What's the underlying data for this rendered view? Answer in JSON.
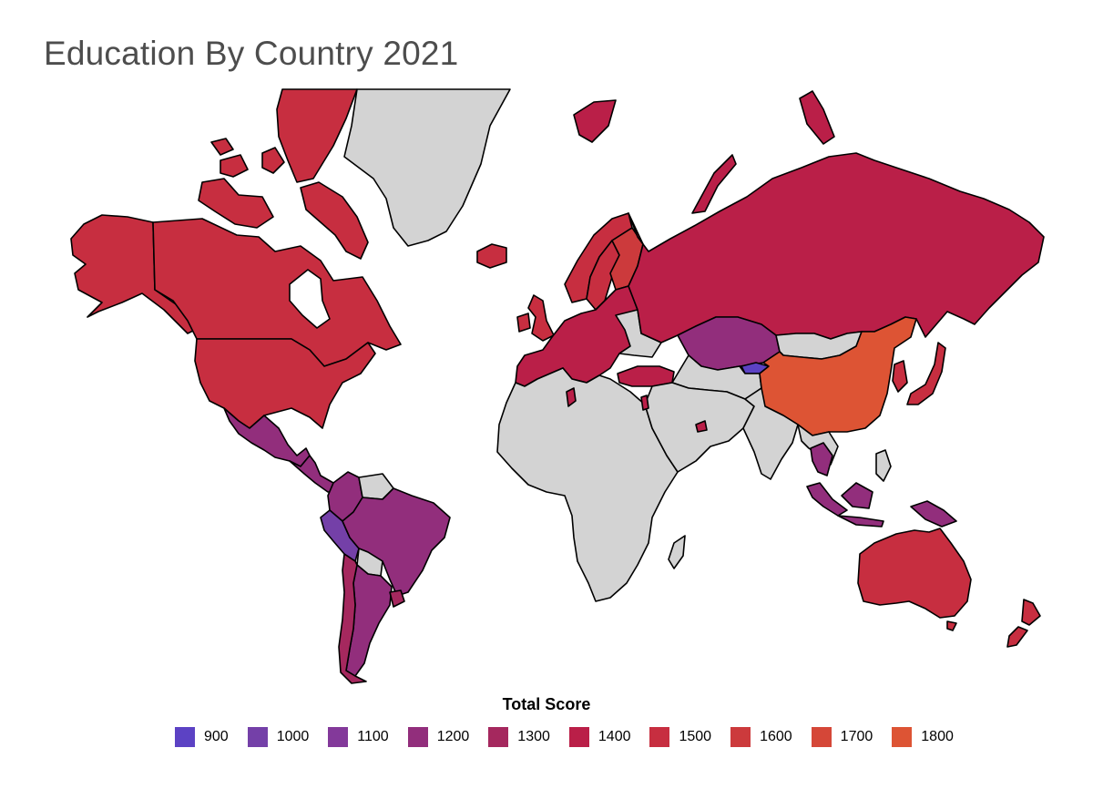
{
  "title": "Education By Country 2021",
  "legend": {
    "title": "Total Score",
    "items": [
      {
        "label": "900",
        "color": "#5c42c4"
      },
      {
        "label": "1000",
        "color": "#7440a8"
      },
      {
        "label": "1100",
        "color": "#83399a"
      },
      {
        "label": "1200",
        "color": "#922e7c"
      },
      {
        "label": "1300",
        "color": "#a5285e"
      },
      {
        "label": "1400",
        "color": "#ba1f48"
      },
      {
        "label": "1500",
        "color": "#c72e40"
      },
      {
        "label": "1600",
        "color": "#cc3a3c"
      },
      {
        "label": "1700",
        "color": "#d54738"
      },
      {
        "label": "1800",
        "color": "#dd5434"
      }
    ]
  },
  "map": {
    "no_data_color": "#d3d3d3",
    "regions": [
      {
        "name": "Canada",
        "band": "1500"
      },
      {
        "name": "Canadian Arctic Archipelago",
        "band": "1500"
      },
      {
        "name": "Alaska",
        "band": "1500"
      },
      {
        "name": "United States",
        "band": "1500"
      },
      {
        "name": "Greenland",
        "band": "no data"
      },
      {
        "name": "Iceland",
        "band": "1500"
      },
      {
        "name": "Mexico",
        "band": "1200"
      },
      {
        "name": "Central America",
        "band": "1200"
      },
      {
        "name": "Colombia",
        "band": "1200"
      },
      {
        "name": "Venezuela",
        "band": "no data"
      },
      {
        "name": "Peru",
        "band": "1000"
      },
      {
        "name": "Brazil",
        "band": "1200"
      },
      {
        "name": "Bolivia",
        "band": "no data"
      },
      {
        "name": "Argentina",
        "band": "1200"
      },
      {
        "name": "Chile",
        "band": "1300"
      },
      {
        "name": "Uruguay",
        "band": "1300"
      },
      {
        "name": "Norway",
        "band": "1500"
      },
      {
        "name": "Sweden",
        "band": "1500"
      },
      {
        "name": "Finland",
        "band": "1600"
      },
      {
        "name": "United Kingdom",
        "band": "1500"
      },
      {
        "name": "Europe",
        "band": "1400"
      },
      {
        "name": "Ukraine/Belarus",
        "band": "no data"
      },
      {
        "name": "Turkey",
        "band": "1400"
      },
      {
        "name": "Russia",
        "band": "1400"
      },
      {
        "name": "Kazakhstan",
        "band": "1200"
      },
      {
        "name": "Kyrgyzstan",
        "band": "900"
      },
      {
        "name": "Mongolia",
        "band": "no data"
      },
      {
        "name": "China",
        "band": "1800"
      },
      {
        "name": "Japan",
        "band": "1500"
      },
      {
        "name": "South Korea",
        "band": "1500"
      },
      {
        "name": "Thailand",
        "band": "1200"
      },
      {
        "name": "Indonesia",
        "band": "1200"
      },
      {
        "name": "Philippines",
        "band": "no data"
      },
      {
        "name": "Australia",
        "band": "1500"
      },
      {
        "name": "New Zealand",
        "band": "1500"
      },
      {
        "name": "Africa",
        "band": "no data"
      },
      {
        "name": "Madagascar",
        "band": "no data"
      },
      {
        "name": "Tunisia",
        "band": "1400"
      },
      {
        "name": "Middle East",
        "band": "no data"
      },
      {
        "name": "Israel",
        "band": "1400"
      },
      {
        "name": "UAE",
        "band": "1400"
      },
      {
        "name": "India",
        "band": "no data"
      },
      {
        "name": "Central Asia",
        "band": "no data"
      }
    ]
  }
}
